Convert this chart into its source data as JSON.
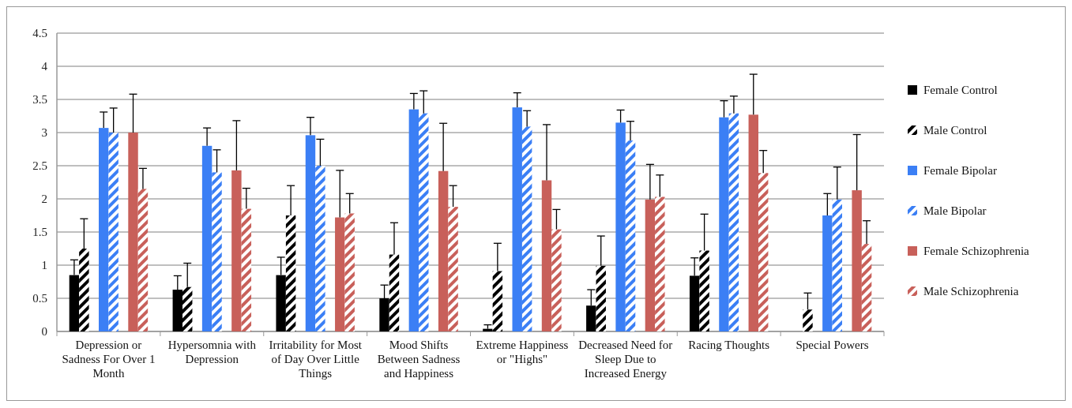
{
  "chart_data": {
    "type": "bar",
    "categories": [
      "Depression or Sadness For Over 1 Month",
      "Hypersomnia with Depression",
      "Irritability for Most of Day Over Little Things",
      "Mood Shifts Between Sadness and Happiness",
      "Extreme Happiness or \"Highs\"",
      "Decreased Need for Sleep Due to Increased Energy",
      "Racing Thoughts",
      "Special Powers"
    ],
    "series": [
      {
        "name": "Female Control",
        "color": "#000000",
        "values": [
          0.85,
          0.63,
          0.85,
          0.5,
          0.04,
          0.39,
          0.84,
          0
        ],
        "errors": [
          [
            0.85,
            1.08
          ],
          [
            0.63,
            0.84
          ],
          [
            0.85,
            1.12
          ],
          [
            0.5,
            0.7
          ],
          [
            0.04,
            0.1
          ],
          [
            0.39,
            0.63
          ],
          [
            0.84,
            1.11
          ],
          null
        ]
      },
      {
        "name": "Male Control",
        "color": "#000000",
        "values": [
          1.25,
          0.67,
          1.75,
          1.16,
          0.91,
          0.99,
          1.22,
          0.33
        ],
        "errors": [
          [
            1.25,
            1.7
          ],
          [
            0.67,
            1.03
          ],
          [
            1.75,
            2.2
          ],
          [
            1.16,
            1.64
          ],
          [
            0.91,
            1.33
          ],
          [
            0.99,
            1.44
          ],
          [
            1.22,
            1.77
          ],
          [
            0.33,
            0.58
          ]
        ]
      },
      {
        "name": "Female Bipolar",
        "color": "#3b7ff5",
        "values": [
          3.07,
          2.8,
          2.96,
          3.35,
          3.38,
          3.15,
          3.23,
          1.75
        ],
        "errors": [
          [
            3.07,
            3.31
          ],
          [
            2.8,
            3.07
          ],
          [
            2.96,
            3.23
          ],
          [
            3.35,
            3.59
          ],
          [
            3.38,
            3.6
          ],
          [
            3.15,
            3.34
          ],
          [
            3.23,
            3.48
          ],
          [
            1.75,
            2.08
          ]
        ]
      },
      {
        "name": "Male Bipolar",
        "color": "#3b7ff5",
        "values": [
          3.0,
          2.4,
          2.5,
          3.29,
          3.09,
          2.88,
          3.29,
          1.99
        ],
        "errors": [
          [
            3.0,
            3.37
          ],
          [
            2.4,
            2.74
          ],
          [
            2.5,
            2.9
          ],
          [
            3.29,
            3.63
          ],
          [
            3.09,
            3.33
          ],
          [
            2.88,
            3.17
          ],
          [
            3.29,
            3.55
          ],
          [
            1.99,
            2.48
          ]
        ]
      },
      {
        "name": "Female Schizophrenia",
        "color": "#c8605a",
        "values": [
          3.0,
          2.43,
          1.72,
          2.42,
          2.28,
          1.99,
          3.27,
          2.13
        ],
        "errors": [
          [
            3.0,
            3.58
          ],
          [
            2.43,
            3.18
          ],
          [
            1.72,
            2.43
          ],
          [
            2.42,
            3.14
          ],
          [
            2.28,
            3.12
          ],
          [
            1.99,
            2.52
          ],
          [
            3.27,
            3.88
          ],
          [
            2.13,
            2.97
          ]
        ]
      },
      {
        "name": "Male Schizophrenia",
        "color": "#c8605a",
        "values": [
          2.15,
          1.85,
          1.78,
          1.88,
          1.54,
          2.03,
          2.39,
          1.32
        ],
        "errors": [
          [
            2.15,
            2.46
          ],
          [
            1.85,
            2.16
          ],
          [
            1.78,
            2.08
          ],
          [
            1.88,
            2.2
          ],
          [
            1.54,
            1.84
          ],
          [
            2.03,
            2.36
          ],
          [
            2.39,
            2.73
          ],
          [
            1.32,
            1.67
          ]
        ]
      }
    ],
    "ylim": [
      0,
      4.5
    ],
    "yticks": [
      0,
      0.5,
      1,
      1.5,
      2,
      2.5,
      3,
      3.5,
      4,
      4.5
    ],
    "grid": "y",
    "legend": "right"
  }
}
